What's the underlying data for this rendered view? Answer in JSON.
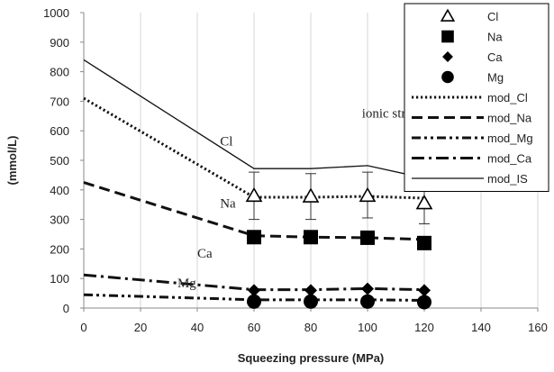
{
  "chart_data": {
    "type": "line",
    "xlabel": "Squeezing pressure (MPa)",
    "ylabel": "(mmol/L)",
    "xlim": [
      0,
      160
    ],
    "ylim": [
      0,
      1000
    ],
    "xticks": [
      "0",
      "20",
      "40",
      "60",
      "80",
      "100",
      "120",
      "140",
      "160"
    ],
    "yticks": [
      "0",
      "100",
      "200",
      "300",
      "400",
      "500",
      "600",
      "700",
      "800",
      "900",
      "1000"
    ],
    "grid": "vertical",
    "legend_position": "top-right",
    "measured": [
      {
        "name": "Cl",
        "marker": "triangle-open",
        "x": [
          60,
          80,
          100,
          120
        ],
        "y": [
          380,
          378,
          380,
          355
        ],
        "err_low": [
          300,
          300,
          305,
          285
        ],
        "err_high": [
          460,
          455,
          460,
          425
        ]
      },
      {
        "name": "Na",
        "marker": "square",
        "x": [
          60,
          80,
          100,
          120
        ],
        "y": [
          240,
          240,
          238,
          220
        ]
      },
      {
        "name": "Ca",
        "marker": "diamond",
        "x": [
          60,
          80,
          100,
          120
        ],
        "y": [
          60,
          60,
          65,
          60
        ]
      },
      {
        "name": "Mg",
        "marker": "circle",
        "x": [
          60,
          80,
          100,
          120
        ],
        "y": [
          22,
          22,
          22,
          20
        ]
      }
    ],
    "models": [
      {
        "name": "mod_Cl",
        "dash": "dotted",
        "x": [
          0,
          60,
          80,
          100,
          120
        ],
        "y": [
          710,
          375,
          375,
          378,
          372
        ]
      },
      {
        "name": "mod_Na",
        "dash": "dashed",
        "x": [
          0,
          60,
          80,
          100,
          120
        ],
        "y": [
          425,
          245,
          240,
          238,
          232
        ]
      },
      {
        "name": "mod_Mg",
        "dash": "dash-dot-dot",
        "x": [
          0,
          60,
          80,
          100,
          120
        ],
        "y": [
          45,
          28,
          28,
          28,
          26
        ]
      },
      {
        "name": "mod_Ca",
        "dash": "dash-dot",
        "x": [
          0,
          60,
          80,
          100,
          120
        ],
        "y": [
          112,
          62,
          62,
          66,
          62
        ]
      },
      {
        "name": "mod_IS",
        "dash": "solid",
        "x": [
          0,
          60,
          80,
          100,
          120
        ],
        "y": [
          840,
          472,
          472,
          482,
          440
        ]
      }
    ],
    "annotations": [
      {
        "text": "ionic strength (IS)",
        "x": 98,
        "y": 645
      },
      {
        "text": "Cl",
        "x": 48,
        "y": 550
      },
      {
        "text": "Na",
        "x": 48,
        "y": 340
      },
      {
        "text": "Ca",
        "x": 40,
        "y": 170
      },
      {
        "text": "Mg",
        "x": 33,
        "y": 70
      }
    ],
    "legend": [
      "Cl",
      "Na",
      "Ca",
      "Mg",
      "mod_Cl",
      "mod_Na",
      "mod_Mg",
      "mod_Ca",
      "mod_IS"
    ]
  }
}
